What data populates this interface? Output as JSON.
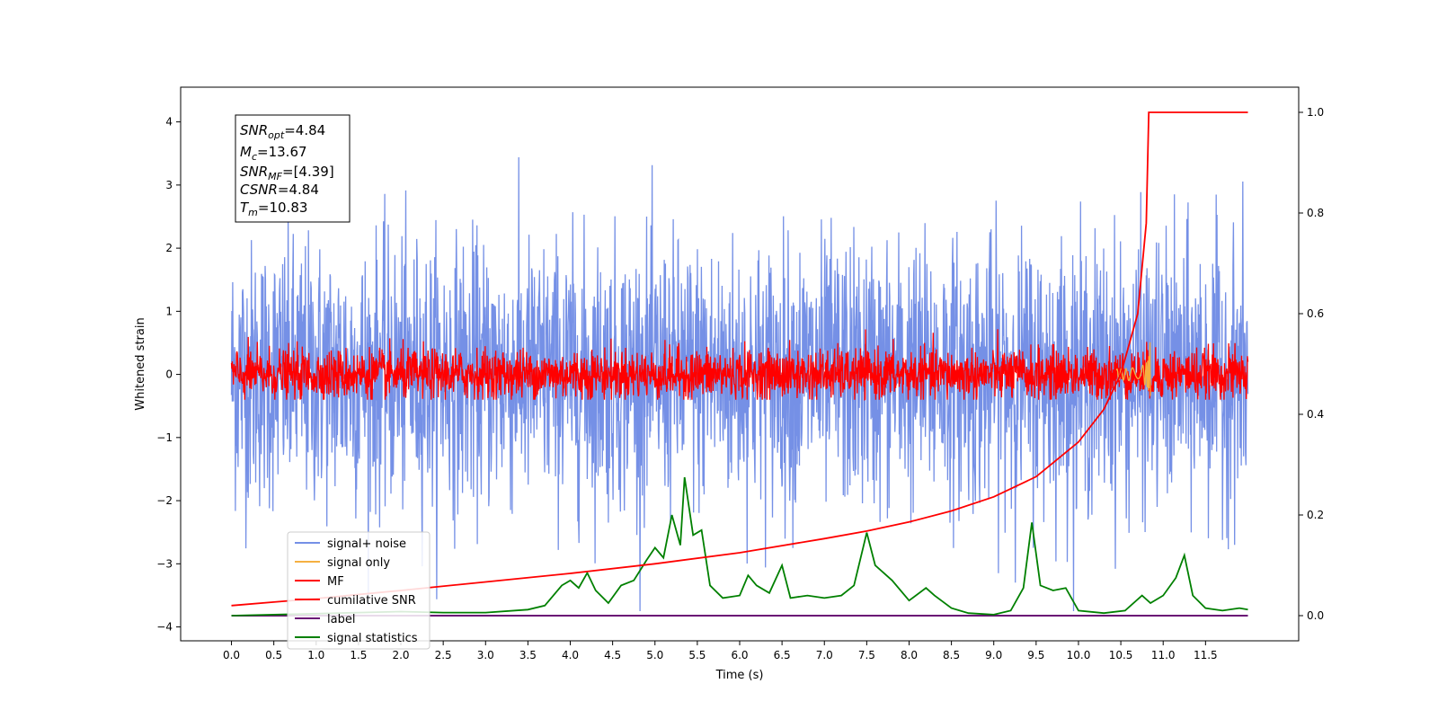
{
  "chart_data": {
    "type": "line",
    "xlabel": "Time (s)",
    "ylabel_left": "Whitened strain",
    "xlim": [
      -0.6,
      12.6
    ],
    "ylim_left": [
      -4.22,
      4.55
    ],
    "ylim_right": [
      -0.05,
      1.05
    ],
    "x_ticks": [
      "0.0",
      "0.5",
      "1.0",
      "1.5",
      "2.0",
      "2.5",
      "3.0",
      "3.5",
      "4.0",
      "4.5",
      "5.0",
      "5.5",
      "6.0",
      "6.5",
      "7.0",
      "7.5",
      "8.0",
      "8.5",
      "9.0",
      "9.5",
      "10.0",
      "10.5",
      "11.0",
      "11.5"
    ],
    "y_ticks_left": [
      "4",
      "3",
      "2",
      "1",
      "0",
      "−1",
      "−2",
      "−3",
      "−4"
    ],
    "y_ticks_right": [
      "1.0",
      "0.8",
      "0.6",
      "0.4",
      "0.2",
      "0.0"
    ],
    "info_box": {
      "snr_opt": "=4.84",
      "mc": "=13.67",
      "snr_mf": "=[4.39]",
      "csnr": "=4.84",
      "tm": "=10.83"
    },
    "legend": {
      "placement": "lower-left",
      "entries": [
        "signal+ noise",
        "signal only",
        "MF",
        "cumilative SNR",
        "label",
        "signal statistics"
      ]
    },
    "colors": {
      "signal_noise": "#7590e6",
      "signal_only": "#f5b041",
      "mf": "#ff0000",
      "cumulative": "#ff0000",
      "label": "#6a0f75",
      "statistics": "#008000"
    },
    "series": {
      "cumulative_snr": {
        "axis": "right",
        "x": [
          0.0,
          0.5,
          1.0,
          2.0,
          3.0,
          4.0,
          5.0,
          6.0,
          7.0,
          7.5,
          8.0,
          8.5,
          9.0,
          9.5,
          10.0,
          10.3,
          10.5,
          10.7,
          10.8,
          10.83,
          11.0,
          11.5,
          12.0
        ],
        "y": [
          0.02,
          0.027,
          0.034,
          0.05,
          0.067,
          0.084,
          0.103,
          0.125,
          0.153,
          0.168,
          0.186,
          0.208,
          0.236,
          0.276,
          0.345,
          0.41,
          0.48,
          0.6,
          0.78,
          1.0,
          1.0,
          1.0,
          1.0
        ]
      },
      "signal_statistics": {
        "axis": "right",
        "x": [
          0.0,
          0.5,
          1.0,
          1.5,
          2.0,
          2.5,
          3.0,
          3.5,
          3.7,
          3.9,
          4.0,
          4.1,
          4.2,
          4.3,
          4.45,
          4.6,
          4.75,
          4.9,
          5.0,
          5.1,
          5.2,
          5.3,
          5.35,
          5.45,
          5.55,
          5.65,
          5.8,
          6.0,
          6.1,
          6.2,
          6.35,
          6.5,
          6.6,
          6.8,
          7.0,
          7.2,
          7.35,
          7.5,
          7.6,
          7.8,
          8.0,
          8.2,
          8.3,
          8.5,
          8.7,
          9.0,
          9.2,
          9.35,
          9.45,
          9.55,
          9.7,
          9.85,
          10.0,
          10.3,
          10.55,
          10.75,
          10.85,
          11.0,
          11.15,
          11.25,
          11.35,
          11.5,
          11.7,
          11.9,
          12.0
        ],
        "y": [
          0.0,
          0.002,
          0.004,
          0.006,
          0.008,
          0.006,
          0.006,
          0.012,
          0.02,
          0.06,
          0.07,
          0.055,
          0.085,
          0.05,
          0.025,
          0.06,
          0.07,
          0.11,
          0.135,
          0.115,
          0.2,
          0.14,
          0.275,
          0.16,
          0.17,
          0.06,
          0.035,
          0.04,
          0.08,
          0.06,
          0.045,
          0.1,
          0.035,
          0.04,
          0.035,
          0.04,
          0.06,
          0.165,
          0.1,
          0.07,
          0.03,
          0.055,
          0.04,
          0.015,
          0.005,
          0.002,
          0.01,
          0.055,
          0.185,
          0.06,
          0.05,
          0.055,
          0.01,
          0.005,
          0.01,
          0.04,
          0.025,
          0.04,
          0.075,
          0.12,
          0.04,
          0.015,
          0.01,
          0.015,
          0.012
        ]
      },
      "label": {
        "axis": "right",
        "x": [
          0.0,
          12.0
        ],
        "y": [
          0.0,
          0.0
        ]
      }
    }
  }
}
